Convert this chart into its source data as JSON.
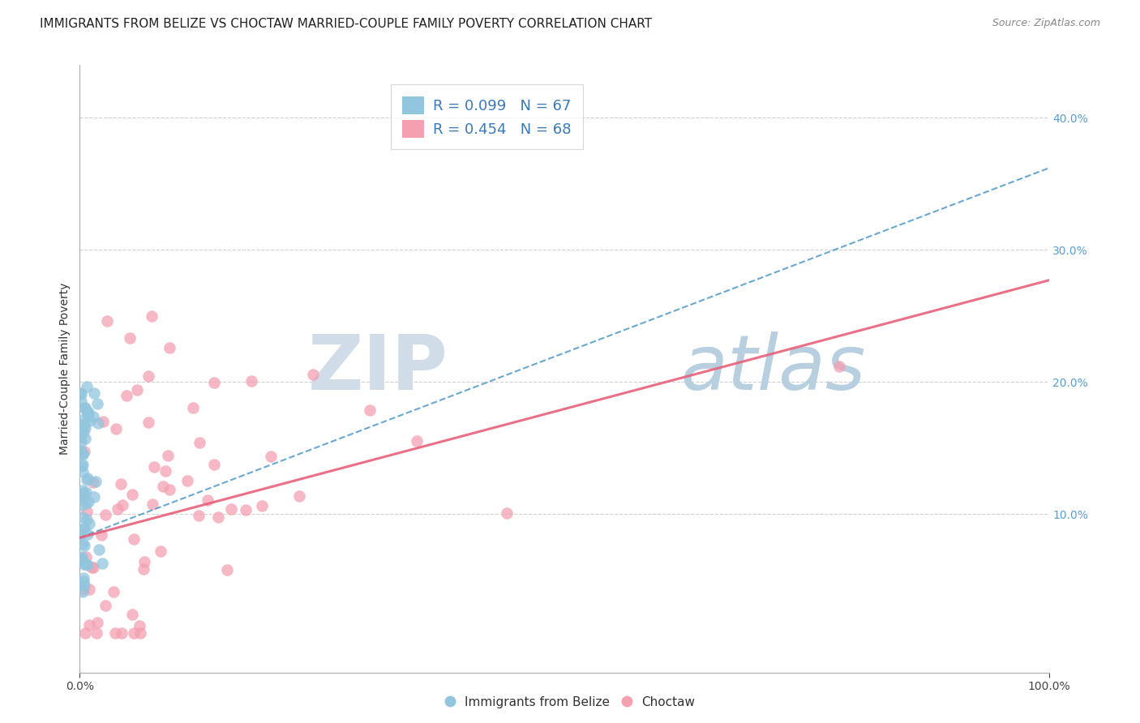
{
  "title": "IMMIGRANTS FROM BELIZE VS CHOCTAW MARRIED-COUPLE FAMILY POVERTY CORRELATION CHART",
  "source": "Source: ZipAtlas.com",
  "ylabel": "Married-Couple Family Poverty",
  "ytick_vals": [
    0.0,
    0.1,
    0.2,
    0.3,
    0.4
  ],
  "ytick_labels": [
    "",
    "10.0%",
    "20.0%",
    "30.0%",
    "40.0%"
  ],
  "xlim": [
    0.0,
    1.0
  ],
  "ylim": [
    -0.02,
    0.44
  ],
  "legend_blue_r": "0.099",
  "legend_blue_n": "67",
  "legend_pink_r": "0.454",
  "legend_pink_n": "68",
  "blue_color": "#92c5de",
  "pink_color": "#f4a0b0",
  "blue_line_color": "#4393c3",
  "pink_line_color": "#e8607a",
  "watermark_zip": "ZIP",
  "watermark_atlas": "atlas",
  "background_color": "#ffffff",
  "grid_color": "#d0d0d0",
  "title_fontsize": 11,
  "axis_fontsize": 10,
  "legend_fontsize": 13,
  "watermark_zip_color": "#d0dce8",
  "watermark_atlas_color": "#b8cfe0",
  "watermark_fontsize": 68,
  "blue_line_intercept": 0.082,
  "blue_line_slope": 0.28,
  "pink_line_intercept": 0.082,
  "pink_line_slope": 0.195
}
